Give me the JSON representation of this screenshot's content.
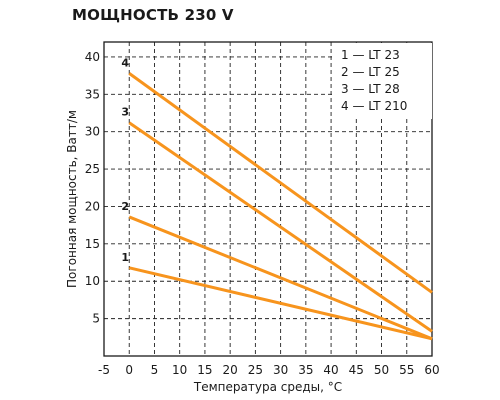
{
  "chart_data": {
    "type": "line",
    "title": "МОЩНОСТЬ 230 V",
    "xlabel": "Температура среды, °C",
    "ylabel": "Погонная мощность, Ватт/м",
    "xlim": [
      -5,
      60
    ],
    "ylim": [
      0,
      42
    ],
    "xticks": [
      "-5",
      "0",
      "5",
      "10",
      "15",
      "20",
      "25",
      "30",
      "35",
      "40",
      "45",
      "50",
      "55",
      "60"
    ],
    "yticks": [
      "5",
      "10",
      "15",
      "20",
      "25",
      "30",
      "35",
      "40"
    ],
    "grid": "dashed",
    "legend": {
      "position": "top-right",
      "entries": [
        "1 — LT 23",
        "2 — LT 25",
        "3 — LT 28",
        "4 — LT 210"
      ]
    },
    "series": [
      {
        "label": "1",
        "x": [
          0,
          60
        ],
        "y": [
          11.8,
          2.3
        ]
      },
      {
        "label": "2",
        "x": [
          0,
          60
        ],
        "y": [
          18.6,
          2.3
        ]
      },
      {
        "label": "3",
        "x": [
          0,
          60
        ],
        "y": [
          31.2,
          3.3
        ]
      },
      {
        "label": "4",
        "x": [
          0,
          60
        ],
        "y": [
          37.8,
          8.5
        ]
      }
    ],
    "line_color": "#f7941d"
  }
}
